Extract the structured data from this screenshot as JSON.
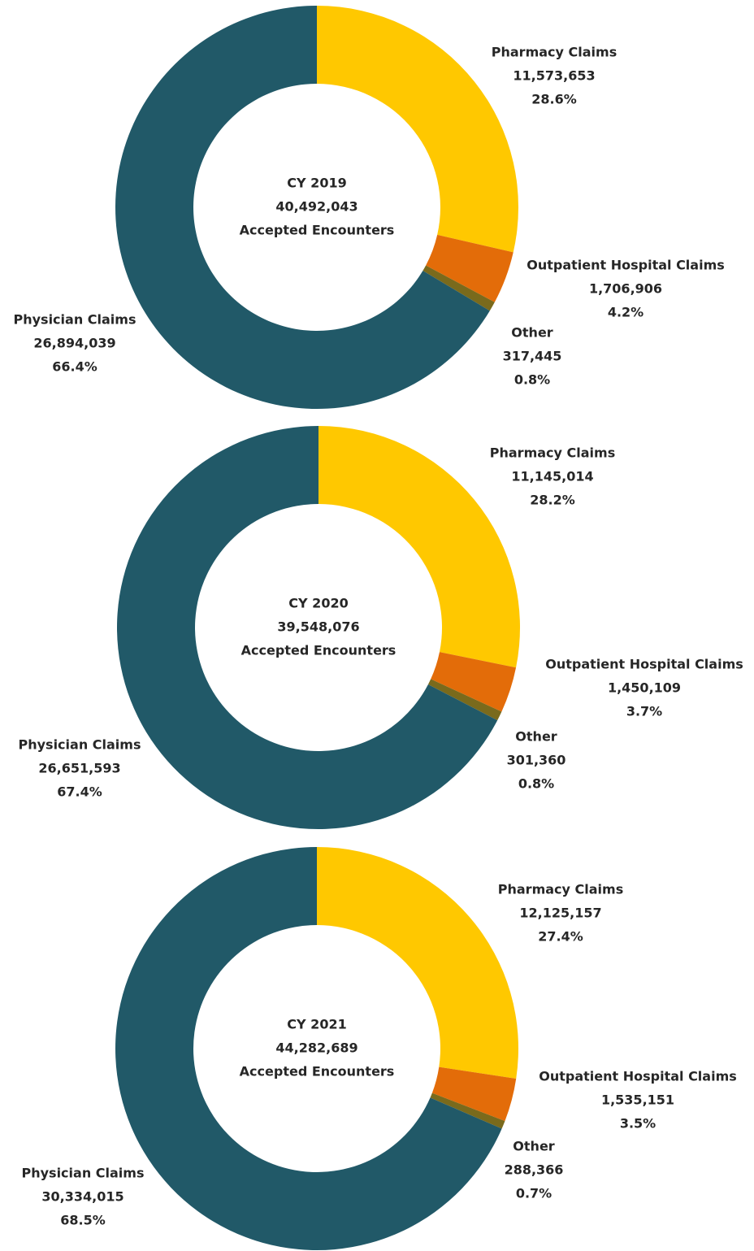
{
  "chart_data": [
    {
      "type": "donut",
      "center": [
        "CY 2019",
        "40,492,043",
        "Accepted Encounters"
      ],
      "categories": [
        "Pharmacy Claims",
        "Outpatient Hospital Claims",
        "Other",
        "Physician Claims"
      ],
      "values": [
        11573653,
        1706906,
        317445,
        26894039
      ],
      "value_labels": [
        "11,573,653",
        "1,706,906",
        "317,445",
        "26,894,039"
      ],
      "percent_labels": [
        "28.6%",
        "4.2%",
        "0.8%",
        "66.4%"
      ],
      "colors": [
        "#ffc800",
        "#e36c09",
        "#7a6a1c",
        "#215968"
      ]
    },
    {
      "type": "donut",
      "center": [
        "CY 2020",
        "39,548,076",
        "Accepted Encounters"
      ],
      "categories": [
        "Pharmacy Claims",
        "Outpatient Hospital Claims",
        "Other",
        "Physician Claims"
      ],
      "values": [
        11145014,
        1450109,
        301360,
        26651593
      ],
      "value_labels": [
        "11,145,014",
        "1,450,109",
        "301,360",
        "26,651,593"
      ],
      "percent_labels": [
        "28.2%",
        "3.7%",
        "0.8%",
        "67.4%"
      ],
      "colors": [
        "#ffc800",
        "#e36c09",
        "#7a6a1c",
        "#215968"
      ]
    },
    {
      "type": "donut",
      "center": [
        "CY 2021",
        "44,282,689",
        "Accepted Encounters"
      ],
      "categories": [
        "Pharmacy Claims",
        "Outpatient Hospital Claims",
        "Other",
        "Physician Claims"
      ],
      "values": [
        12125157,
        1535151,
        288366,
        30334015
      ],
      "value_labels": [
        "12,125,157",
        "1,535,151",
        "288,366",
        "30,334,015"
      ],
      "percent_labels": [
        "27.4%",
        "3.5%",
        "0.7%",
        "68.5%"
      ],
      "colors": [
        "#ffc800",
        "#e36c09",
        "#7a6a1c",
        "#215968"
      ]
    }
  ]
}
